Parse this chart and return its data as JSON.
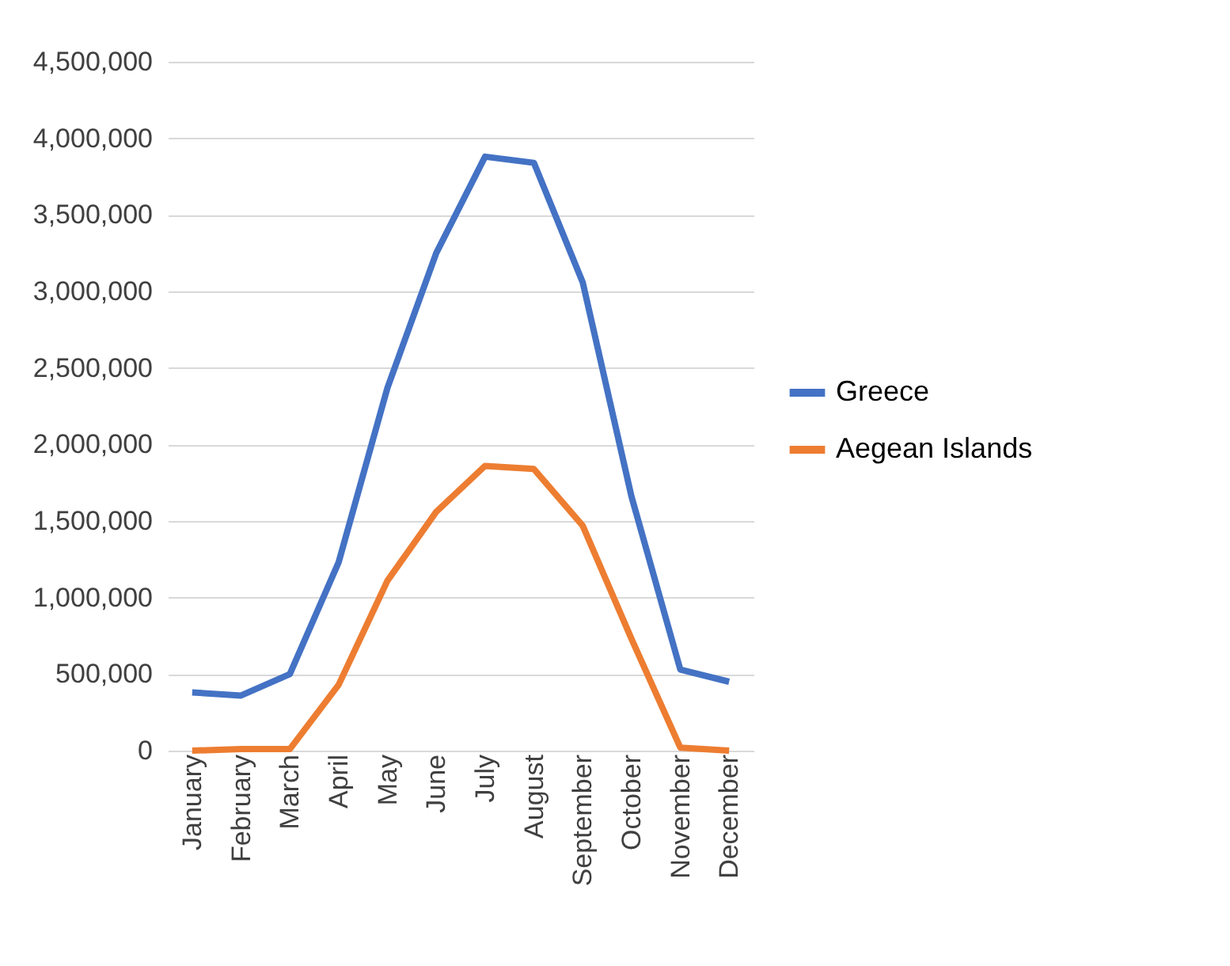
{
  "chart_data": {
    "type": "line",
    "categories": [
      "January",
      "February",
      "March",
      "April",
      "May",
      "June",
      "July",
      "August",
      "September",
      "October",
      "November",
      "December"
    ],
    "series": [
      {
        "name": "Greece",
        "color": "#4472c4",
        "values": [
          380000,
          360000,
          500000,
          1230000,
          2370000,
          3250000,
          3880000,
          3840000,
          3060000,
          1660000,
          530000,
          450000
        ]
      },
      {
        "name": "Aegean Islands",
        "color": "#ed7d31",
        "values": [
          0,
          10000,
          10000,
          430000,
          1110000,
          1560000,
          1860000,
          1840000,
          1470000,
          730000,
          20000,
          0
        ]
      }
    ],
    "ylim": [
      0,
      4500000
    ],
    "yticks": [
      {
        "value": 0,
        "label": "0"
      },
      {
        "value": 500000,
        "label": "500,000"
      },
      {
        "value": 1000000,
        "label": "1,000,000"
      },
      {
        "value": 1500000,
        "label": "1,500,000"
      },
      {
        "value": 2000000,
        "label": "2,000,000"
      },
      {
        "value": 2500000,
        "label": "2,500,000"
      },
      {
        "value": 3000000,
        "label": "3,000,000"
      },
      {
        "value": 3500000,
        "label": "3,500,000"
      },
      {
        "value": 4000000,
        "label": "4,000,000"
      },
      {
        "value": 4500000,
        "label": "4,500,000"
      }
    ],
    "grid": "y",
    "legend": "right",
    "marker": "none",
    "line_style": "solid"
  }
}
